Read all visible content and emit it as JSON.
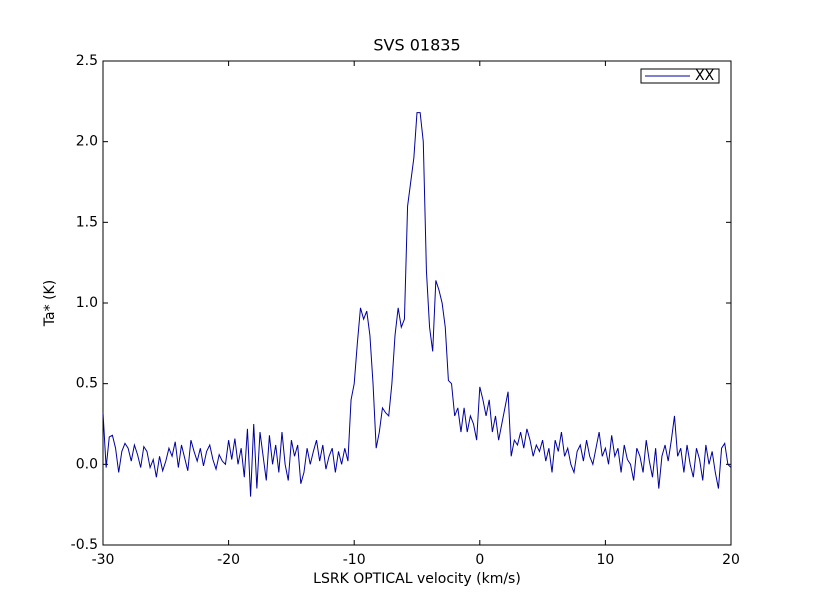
{
  "chart_data": {
    "type": "line",
    "title": "SVS 01835",
    "xlabel": "LSRK OPTICAL velocity (km/s)",
    "ylabel": "Ta* (K)",
    "xlim": [
      -30,
      20
    ],
    "ylim": [
      -0.5,
      2.5
    ],
    "xticks": [
      -30,
      -20,
      -10,
      0,
      10,
      20
    ],
    "yticks": [
      -0.5,
      {
        "value": 0,
        "label": "0.0"
      },
      0.5,
      {
        "value": 1,
        "label": "1.0"
      },
      1.5,
      {
        "value": 2,
        "label": "2.0"
      },
      2.5
    ],
    "legend": "upper right",
    "grid": false,
    "x": [
      -30,
      -29.75,
      -29.5,
      -29.25,
      -29,
      -28.75,
      -28.5,
      -28.25,
      -28,
      -27.75,
      -27.5,
      -27.25,
      -27,
      -26.75,
      -26.5,
      -26.25,
      -26,
      -25.75,
      -25.5,
      -25.25,
      -25,
      -24.75,
      -24.5,
      -24.25,
      -24,
      -23.75,
      -23.5,
      -23.25,
      -23,
      -22.75,
      -22.5,
      -22.25,
      -22,
      -21.75,
      -21.5,
      -21.25,
      -21,
      -20.75,
      -20.5,
      -20.25,
      -20,
      -19.75,
      -19.5,
      -19.25,
      -19,
      -18.75,
      -18.5,
      -18.25,
      -18,
      -17.75,
      -17.5,
      -17.25,
      -17,
      -16.75,
      -16.5,
      -16.25,
      -16,
      -15.75,
      -15.5,
      -15.25,
      -15,
      -14.75,
      -14.5,
      -14.25,
      -14,
      -13.75,
      -13.5,
      -13.25,
      -13,
      -12.75,
      -12.5,
      -12.25,
      -12,
      -11.75,
      -11.5,
      -11.25,
      -11,
      -10.75,
      -10.5,
      -10.25,
      -10,
      -9.75,
      -9.5,
      -9.25,
      -9,
      -8.75,
      -8.5,
      -8.25,
      -8,
      -7.75,
      -7.5,
      -7.25,
      -7,
      -6.75,
      -6.5,
      -6.25,
      -6,
      -5.75,
      -5.5,
      -5.25,
      -5,
      -4.75,
      -4.5,
      -4.25,
      -4,
      -3.75,
      -3.5,
      -3.25,
      -3,
      -2.75,
      -2.5,
      -2.25,
      -2,
      -1.75,
      -1.5,
      -1.25,
      -1,
      -0.75,
      -0.5,
      -0.25,
      0,
      0.25,
      0.5,
      0.75,
      1,
      1.25,
      1.5,
      1.75,
      2,
      2.25,
      2.5,
      2.75,
      3,
      3.25,
      3.5,
      3.75,
      4,
      4.25,
      4.5,
      4.75,
      5,
      5.25,
      5.5,
      5.75,
      6,
      6.25,
      6.5,
      6.75,
      7,
      7.25,
      7.5,
      7.75,
      8,
      8.25,
      8.5,
      8.75,
      9,
      9.25,
      9.5,
      9.75,
      10,
      10.25,
      10.5,
      10.75,
      11,
      11.25,
      11.5,
      11.75,
      12,
      12.25,
      12.5,
      12.75,
      13,
      13.25,
      13.5,
      13.75,
      14,
      14.25,
      14.5,
      14.75,
      15,
      15.25,
      15.5,
      15.75,
      16,
      16.25,
      16.5,
      16.75,
      17,
      17.25,
      17.5,
      17.75,
      18,
      18.25,
      18.5,
      18.75,
      19,
      19.25,
      19.5,
      19.75,
      20
    ],
    "series": [
      {
        "name": "XX",
        "color": "#0000a0",
        "values": [
          0.32,
          -0.02,
          0.17,
          0.18,
          0.1,
          -0.05,
          0.08,
          0.13,
          0.1,
          0.02,
          0.12,
          0.06,
          -0.02,
          0.11,
          0.08,
          -0.02,
          0.03,
          -0.08,
          0.05,
          -0.04,
          0.02,
          0.1,
          0.05,
          0.14,
          -0.02,
          0.12,
          0.04,
          -0.04,
          0.15,
          0.08,
          0.02,
          0.1,
          -0.01,
          0.08,
          0.12,
          0.03,
          -0.03,
          0.06,
          0.02,
          0.0,
          0.15,
          0.03,
          0.16,
          0.0,
          0.1,
          -0.08,
          0.22,
          -0.2,
          0.25,
          -0.15,
          0.2,
          0.05,
          -0.1,
          0.18,
          0.0,
          0.12,
          -0.05,
          0.2,
          0.0,
          -0.1,
          0.15,
          0.05,
          0.12,
          -0.12,
          -0.05,
          0.1,
          0.0,
          0.08,
          0.15,
          0.02,
          0.12,
          -0.03,
          0.05,
          0.1,
          -0.05,
          0.08,
          0.0,
          0.1,
          0.02,
          0.4,
          0.5,
          0.75,
          0.97,
          0.9,
          0.95,
          0.8,
          0.5,
          0.1,
          0.2,
          0.35,
          0.32,
          0.3,
          0.5,
          0.8,
          0.97,
          0.85,
          0.9,
          1.6,
          1.75,
          1.9,
          2.18,
          2.18,
          2.0,
          1.2,
          0.85,
          0.7,
          1.14,
          1.08,
          1.0,
          0.85,
          0.52,
          0.5,
          0.3,
          0.35,
          0.2,
          0.35,
          0.2,
          0.3,
          0.25,
          0.15,
          0.48,
          0.4,
          0.3,
          0.4,
          0.2,
          0.3,
          0.15,
          0.25,
          0.35,
          0.45,
          0.05,
          0.15,
          0.12,
          0.2,
          0.1,
          0.22,
          0.15,
          0.05,
          0.12,
          0.08,
          0.15,
          0.02,
          0.1,
          -0.05,
          0.15,
          0.08,
          0.2,
          0.05,
          0.1,
          0.0,
          -0.05,
          0.08,
          0.12,
          0.02,
          0.15,
          0.05,
          0.0,
          0.1,
          0.2,
          0.05,
          0.1,
          0.0,
          0.18,
          0.05,
          0.1,
          -0.05,
          0.12,
          0.03,
          0.0,
          -0.1,
          0.1,
          0.05,
          -0.05,
          0.15,
          0.02,
          -0.08,
          0.1,
          -0.15,
          0.05,
          0.12,
          0.02,
          0.15,
          0.3,
          0.05,
          0.1,
          -0.05,
          0.12,
          0.0,
          -0.08,
          0.1,
          0.03,
          -0.1,
          0.12,
          0.0,
          0.08,
          -0.05,
          -0.15,
          0.1,
          0.13,
          0.0,
          -0.02
        ]
      }
    ]
  }
}
